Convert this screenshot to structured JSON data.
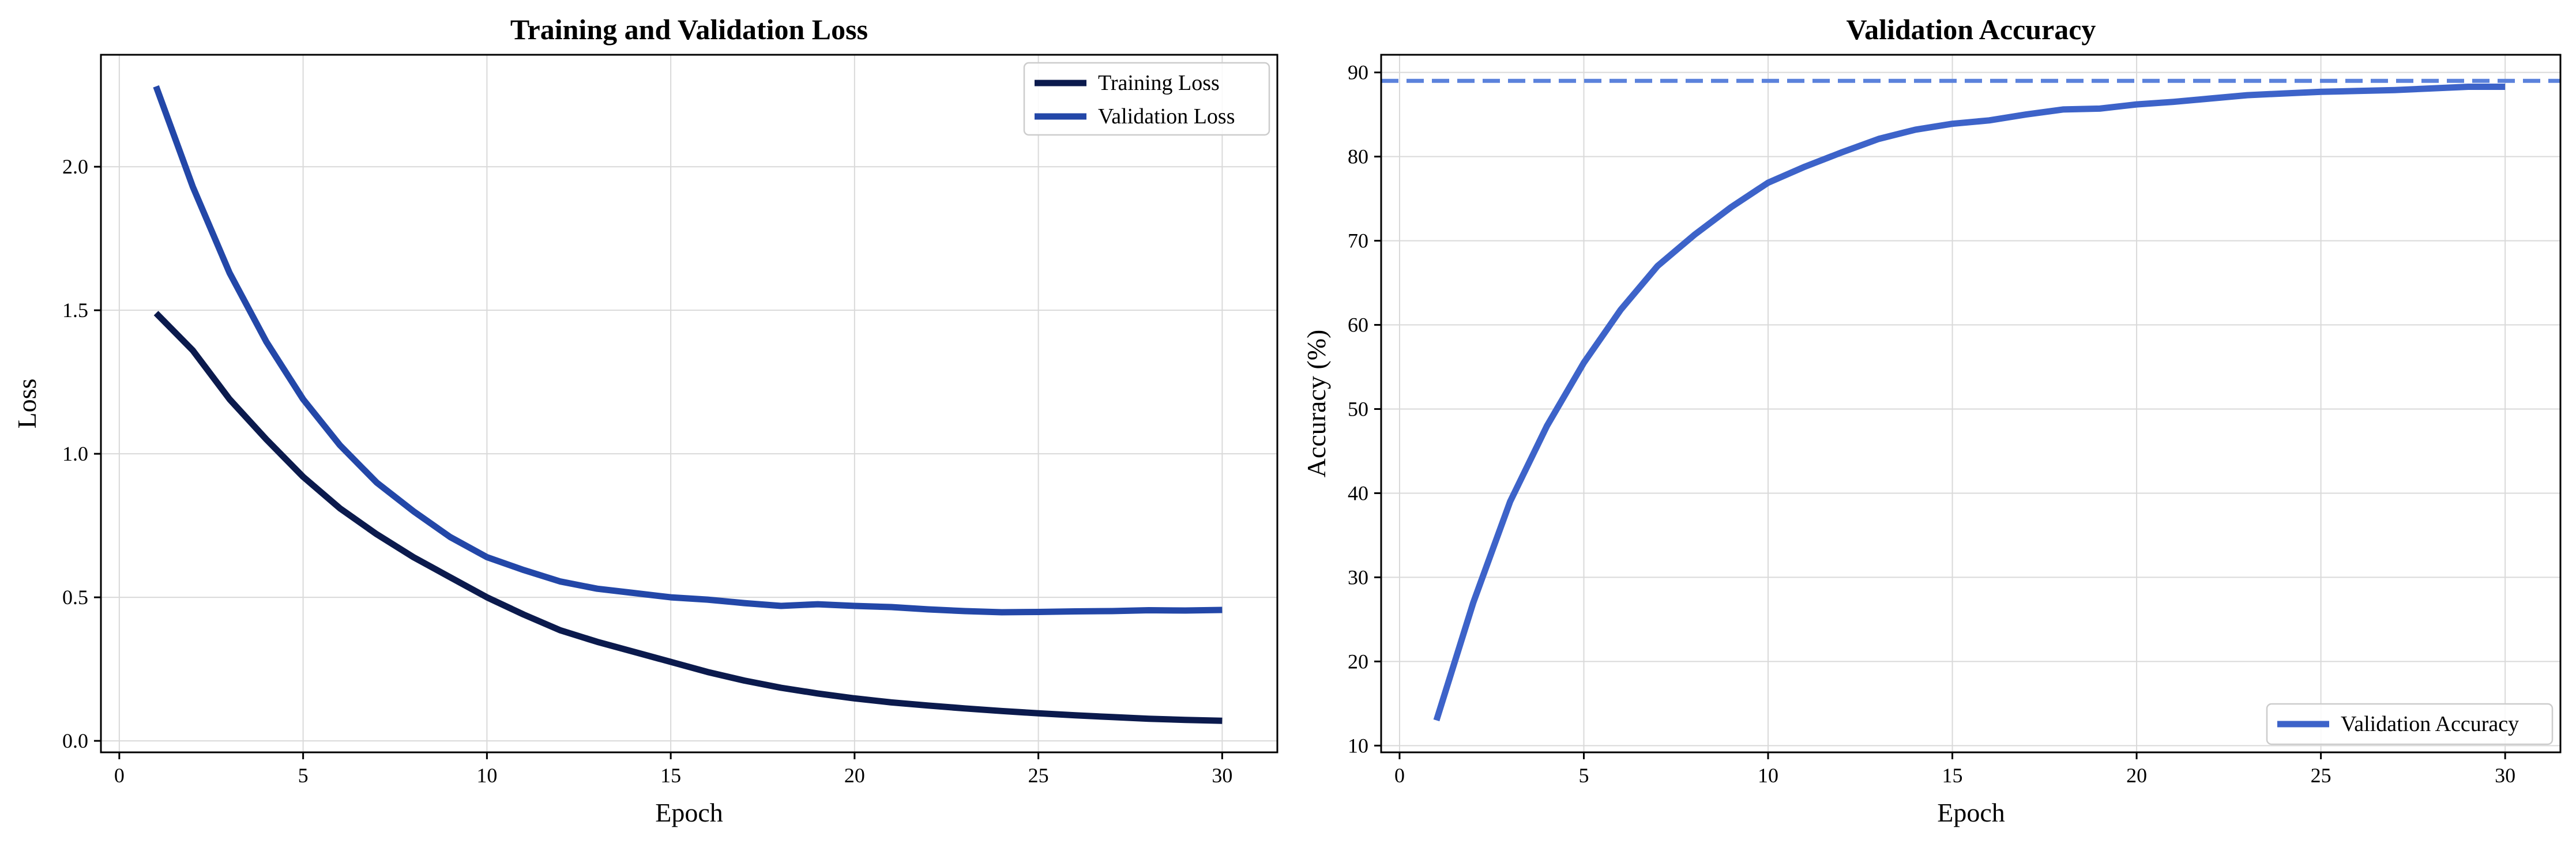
{
  "chart_data": [
    {
      "type": "line",
      "title": "Training and Validation Loss",
      "xlabel": "Epoch",
      "ylabel": "Loss",
      "xlim": [
        -0.5,
        31.5
      ],
      "ylim": [
        -0.04,
        2.39
      ],
      "xticks": [
        0,
        5,
        10,
        15,
        20,
        25,
        30
      ],
      "xtick_labels": [
        "0",
        "5",
        "10",
        "15",
        "20",
        "25",
        "30"
      ],
      "yticks": [
        0.0,
        0.5,
        1.0,
        1.5,
        2.0
      ],
      "ytick_labels": [
        "0.0",
        "0.5",
        "1.0",
        "1.5",
        "2.0"
      ],
      "grid": true,
      "legend": "upper-right",
      "x": [
        1,
        2,
        3,
        4,
        5,
        6,
        7,
        8,
        9,
        10,
        11,
        12,
        13,
        14,
        15,
        16,
        17,
        18,
        19,
        20,
        21,
        22,
        23,
        24,
        25,
        26,
        27,
        28,
        29,
        30
      ],
      "series": [
        {
          "name": "Training Loss",
          "color": "#0b1a4d",
          "values": [
            1.49,
            1.36,
            1.19,
            1.05,
            0.92,
            0.81,
            0.72,
            0.64,
            0.57,
            0.5,
            0.44,
            0.385,
            0.345,
            0.31,
            0.275,
            0.24,
            0.21,
            0.185,
            0.165,
            0.148,
            0.134,
            0.123,
            0.113,
            0.104,
            0.096,
            0.089,
            0.083,
            0.077,
            0.073,
            0.07
          ]
        },
        {
          "name": "Validation Loss",
          "color": "#2347a8",
          "values": [
            2.28,
            1.93,
            1.63,
            1.39,
            1.19,
            1.03,
            0.9,
            0.8,
            0.71,
            0.64,
            0.595,
            0.555,
            0.53,
            0.515,
            0.5,
            0.492,
            0.48,
            0.47,
            0.476,
            0.47,
            0.466,
            0.458,
            0.452,
            0.448,
            0.449,
            0.451,
            0.452,
            0.455,
            0.454,
            0.456
          ]
        }
      ]
    },
    {
      "type": "line",
      "title": "Validation Accuracy",
      "xlabel": "Epoch",
      "ylabel": "Accuracy (%)",
      "xlim": [
        -0.5,
        31.5
      ],
      "ylim": [
        9.2,
        92.1
      ],
      "xticks": [
        0,
        5,
        10,
        15,
        20,
        25,
        30
      ],
      "xtick_labels": [
        "0",
        "5",
        "10",
        "15",
        "20",
        "25",
        "30"
      ],
      "yticks": [
        10,
        20,
        30,
        40,
        50,
        60,
        70,
        80,
        90
      ],
      "ytick_labels": [
        "10",
        "20",
        "30",
        "40",
        "50",
        "60",
        "70",
        "80",
        "90"
      ],
      "grid": true,
      "legend": "lower-right",
      "reference_line": {
        "y": 89,
        "style": "dashed",
        "color": "#5b82dc"
      },
      "x": [
        1,
        2,
        3,
        4,
        5,
        6,
        7,
        8,
        9,
        10,
        11,
        12,
        13,
        14,
        15,
        16,
        17,
        18,
        19,
        20,
        21,
        22,
        23,
        24,
        25,
        26,
        27,
        28,
        29,
        30
      ],
      "series": [
        {
          "name": "Validation Accuracy",
          "color": "#3d63c9",
          "values": [
            13.0,
            27.0,
            39.0,
            48.0,
            55.5,
            61.8,
            67.0,
            70.7,
            74.0,
            76.9,
            78.8,
            80.5,
            82.1,
            83.2,
            83.9,
            84.3,
            85.0,
            85.6,
            85.7,
            86.2,
            86.5,
            86.9,
            87.3,
            87.5,
            87.7,
            87.8,
            87.9,
            88.1,
            88.3,
            88.3
          ]
        }
      ]
    }
  ]
}
